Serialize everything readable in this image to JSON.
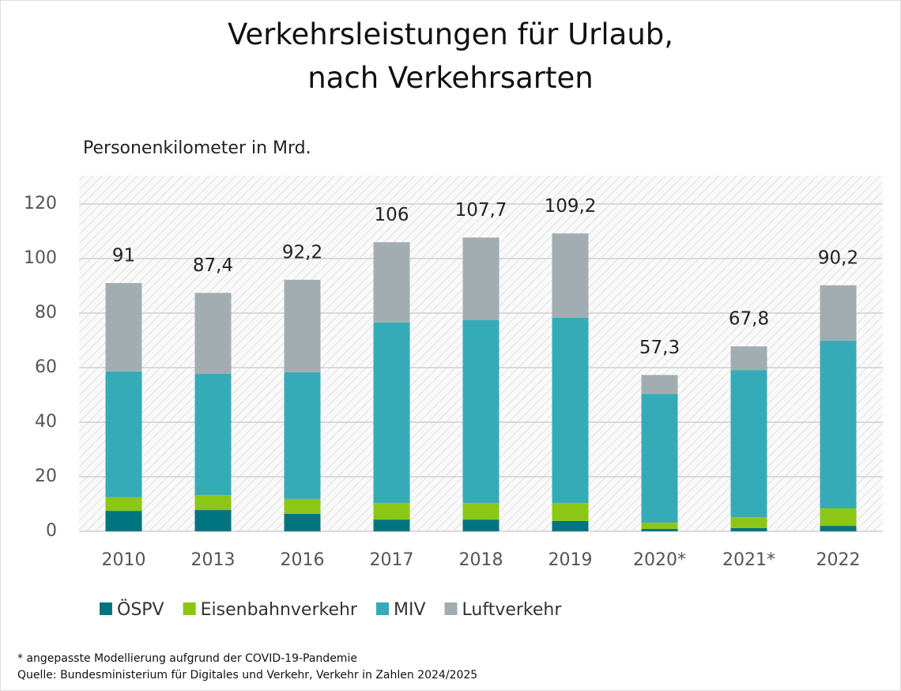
{
  "chart_data": {
    "type": "stacked_bar",
    "title": "Verkehrsleistungen für Urlaub, nach Verkehrsarten",
    "y_label": "Personenkilometer in Mrd.",
    "categories": [
      "2010",
      "2013",
      "2016",
      "2017",
      "2018",
      "2019",
      "2020*",
      "2021*",
      "2022"
    ],
    "series": [
      {
        "name": "ÖSPV",
        "color": "#007580",
        "values": [
          7.5,
          7.8,
          6.4,
          4.3,
          4.3,
          3.8,
          0.9,
          1.2,
          2.0
        ]
      },
      {
        "name": "Eisenbahnverkehr",
        "color": "#8cc715",
        "values": [
          5.0,
          5.5,
          5.5,
          6.1,
          6.1,
          6.6,
          2.3,
          4.0,
          6.4
        ]
      },
      {
        "name": "MIV",
        "color": "#36abb8",
        "values": [
          46.1,
          44.4,
          46.4,
          66.1,
          67.0,
          67.9,
          47.2,
          53.9,
          61.5
        ]
      },
      {
        "name": "Luftverkehr",
        "color": "#a2adb1",
        "values": [
          32.4,
          29.7,
          33.9,
          29.5,
          30.3,
          30.9,
          6.9,
          8.7,
          20.3
        ]
      }
    ],
    "totals": [
      91,
      87.4,
      92.2,
      106,
      107.7,
      109.2,
      57.3,
      67.8,
      90.2
    ],
    "value_labels": [
      "91",
      "87,4",
      "92,2",
      "106",
      "107,7",
      "109,2",
      "57,3",
      "67,8",
      "90,2"
    ],
    "ylim": [
      0,
      120
    ],
    "yticks": [
      0,
      20,
      40,
      60,
      80,
      100,
      120
    ],
    "grid": true,
    "legend": "bottom",
    "notes": [
      "* angepasste Modellierung aufgrund der COVID-19-Pandemie",
      "Quelle: Bundesministerium für Digitales und Verkehr, Verkehr in Zahlen 2024/2025"
    ]
  }
}
